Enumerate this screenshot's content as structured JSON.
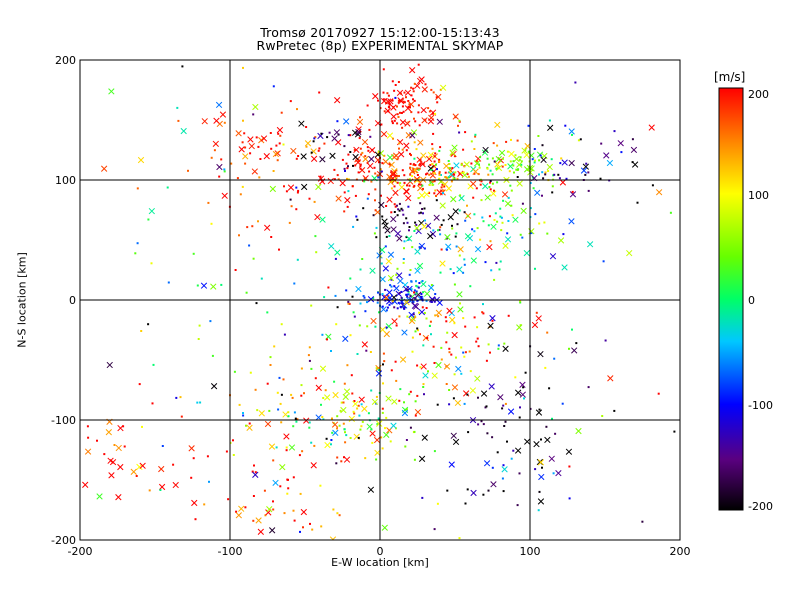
{
  "chart_data": {
    "type": "scatter",
    "title": "Tromsø 20170927 15:12:00-15:13:43",
    "subtitle": "RwPretec (8p) EXPERIMENTAL SKYMAP",
    "xlabel": "E-W location [km]",
    "ylabel": "N-S location [km]",
    "xlim": [
      -200,
      200
    ],
    "ylim": [
      -200,
      200
    ],
    "xticks": [
      "-200",
      "-100",
      "0",
      "100",
      "200"
    ],
    "yticks": [
      "-200",
      "-100",
      "0",
      "100",
      "200"
    ],
    "grid": true,
    "colorbar": {
      "unit": "[m/s]",
      "range": [
        -200,
        200
      ],
      "ticks": [
        "200",
        "100",
        "0",
        "-100",
        "-200"
      ],
      "colormap": [
        "#000000",
        "#7a00a8",
        "#0000ff",
        "#00c8ff",
        "#00ff66",
        "#66ff00",
        "#ffff00",
        "#ff8800",
        "#ff0000"
      ]
    },
    "clusters": [
      {
        "x": 15,
        "y": 165,
        "sx": 12,
        "sy": 12,
        "v": 200,
        "vs": 25,
        "n": 90
      },
      {
        "x": 15,
        "y": 110,
        "sx": 28,
        "sy": 18,
        "v": 190,
        "vs": 40,
        "n": 240
      },
      {
        "x": 45,
        "y": 105,
        "sx": 18,
        "sy": 12,
        "v": 80,
        "vs": 60,
        "n": 90
      },
      {
        "x": 95,
        "y": 115,
        "sx": 15,
        "sy": 10,
        "v": 50,
        "vs": 35,
        "n": 70
      },
      {
        "x": 130,
        "y": 110,
        "sx": 30,
        "sy": 25,
        "v": -150,
        "vs": 60,
        "n": 50
      },
      {
        "x": 25,
        "y": 65,
        "sx": 18,
        "sy": 10,
        "v": -190,
        "vs": 40,
        "n": 50
      },
      {
        "x": 75,
        "y": 60,
        "sx": 20,
        "sy": 20,
        "v": 0,
        "vs": 50,
        "n": 50
      },
      {
        "x": 20,
        "y": 25,
        "sx": 22,
        "sy": 20,
        "v": -30,
        "vs": 60,
        "n": 90
      },
      {
        "x": 15,
        "y": 0,
        "sx": 12,
        "sy": 6,
        "v": -110,
        "vs": 30,
        "n": 80
      },
      {
        "x": -75,
        "y": 125,
        "sx": 30,
        "sy": 25,
        "v": 190,
        "vs": 40,
        "n": 80
      },
      {
        "x": -20,
        "y": 130,
        "sx": 15,
        "sy": 10,
        "v": -180,
        "vs": 40,
        "n": 30
      },
      {
        "x": 30,
        "y": -40,
        "sx": 40,
        "sy": 25,
        "v": 150,
        "vs": 80,
        "n": 120
      },
      {
        "x": 80,
        "y": -110,
        "sx": 35,
        "sy": 35,
        "v": -180,
        "vs": 60,
        "n": 80
      },
      {
        "x": -10,
        "y": -105,
        "sx": 20,
        "sy": 15,
        "v": 60,
        "vs": 80,
        "n": 70
      },
      {
        "x": -60,
        "y": -90,
        "sx": 25,
        "sy": 20,
        "v": 90,
        "vs": 80,
        "n": 60
      },
      {
        "x": -70,
        "y": -160,
        "sx": 30,
        "sy": 25,
        "v": 180,
        "vs": 60,
        "n": 60
      },
      {
        "x": -170,
        "y": -120,
        "sx": 25,
        "sy": 25,
        "v": 180,
        "vs": 50,
        "n": 40
      },
      {
        "x": 0,
        "y": 0,
        "sx": 110,
        "sy": 110,
        "v": 0,
        "vs": 130,
        "n": 260
      }
    ]
  }
}
